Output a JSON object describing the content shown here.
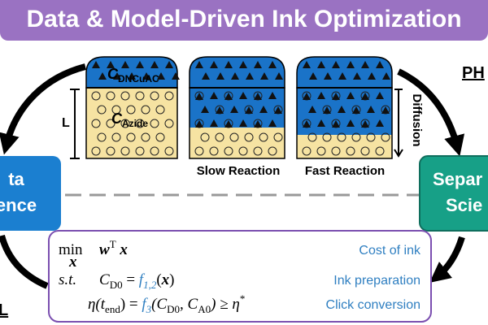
{
  "header": {
    "title": "Data & Model-Driven Ink Optimization"
  },
  "reactor": {
    "top_label": {
      "symbol": "C",
      "subscript": "DNCuAC"
    },
    "bottom_label": {
      "symbol": "C",
      "subscript": "Azide"
    },
    "length_label": "L",
    "diffusion_label": "Diffusion",
    "captions": [
      "Slow Reaction",
      "Fast Reaction"
    ]
  },
  "left_box": {
    "lines": [
      "ta",
      "ence"
    ]
  },
  "right_box": {
    "lines": [
      "Separ",
      "Scie"
    ]
  },
  "right_heading": "PH",
  "left_heading": "L",
  "optimization": {
    "rows": [
      {
        "operator": "min",
        "operator_under": "x",
        "segments": [
          {
            "text": "w",
            "style": "bold"
          },
          {
            "text": "T",
            "style": "sup"
          },
          {
            "text": " x",
            "style": "bold"
          }
        ],
        "label": "Cost of ink"
      },
      {
        "operator": "s.t.",
        "segments": [
          {
            "text": "C",
            "style": "italic"
          },
          {
            "text": "D0",
            "style": "sub"
          },
          {
            "text": " = ",
            "style": "plain"
          },
          {
            "text": "f",
            "style": "blue"
          },
          {
            "text": "1,2",
            "style": "blue-sub"
          },
          {
            "text": "(",
            "style": "plain"
          },
          {
            "text": "x",
            "style": "bold"
          },
          {
            "text": ")",
            "style": "plain"
          }
        ],
        "label": "Ink preparation"
      },
      {
        "segments": [
          {
            "text": "η(t",
            "style": "italic"
          },
          {
            "text": "end",
            "style": "sub"
          },
          {
            "text": ") = ",
            "style": "plain"
          },
          {
            "text": "f",
            "style": "blue"
          },
          {
            "text": "3",
            "style": "blue-sub"
          },
          {
            "text": "(C",
            "style": "italic"
          },
          {
            "text": "D0",
            "style": "sub"
          },
          {
            "text": ", C",
            "style": "italic"
          },
          {
            "text": "A0",
            "style": "sub"
          },
          {
            "text": ") ≥ η",
            "style": "italic"
          },
          {
            "text": "*",
            "style": "sup"
          }
        ],
        "label": "Click conversion"
      }
    ]
  }
}
